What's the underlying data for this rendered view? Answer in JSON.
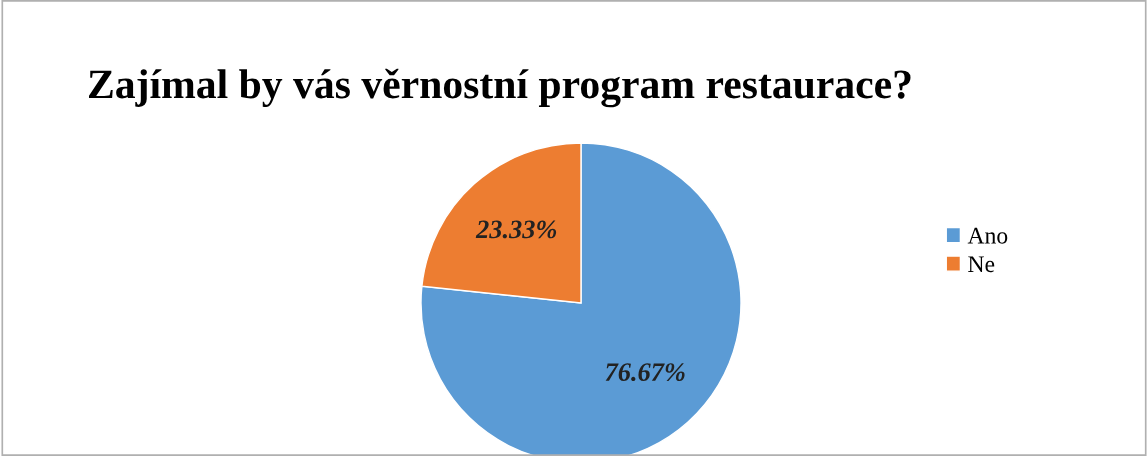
{
  "chart_data": {
    "type": "pie",
    "title": "Zajímal by vás věrnostní program restaurace?",
    "categories": [
      "Ano",
      "Ne"
    ],
    "values": [
      76.67,
      23.33
    ],
    "colors": [
      "#5b9bd5",
      "#ed7d31"
    ],
    "value_labels": [
      "76.67%",
      "23.33%"
    ],
    "legend": "right"
  }
}
